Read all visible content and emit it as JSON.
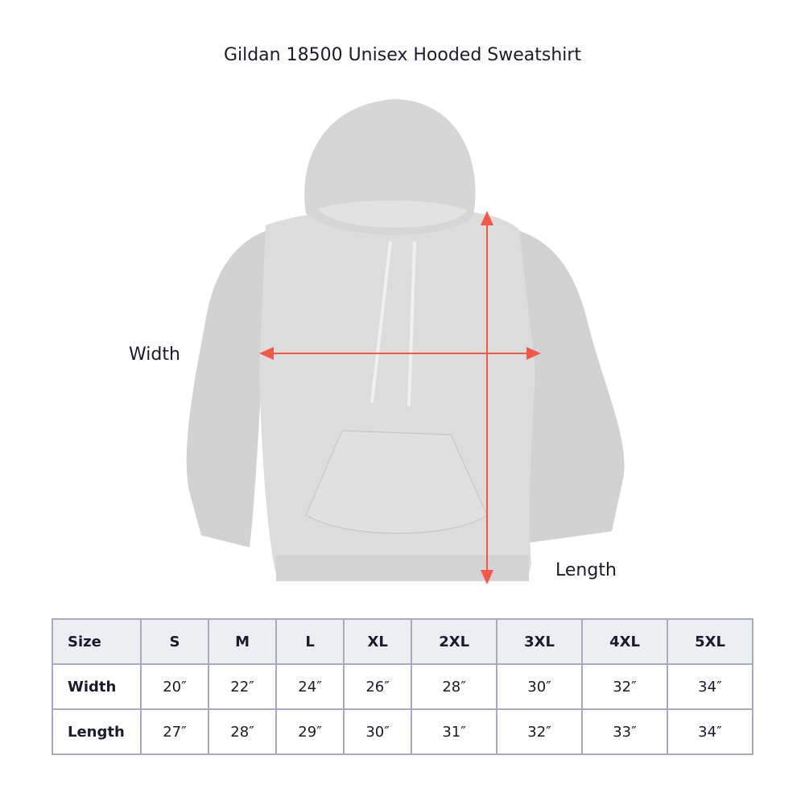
{
  "title": "Gildan 18500 Unisex Hooded Sweatshirt",
  "labels": {
    "width": "Width",
    "length": "Length"
  },
  "colors": {
    "arrow": "#f0584a",
    "garment": "#d9d9da",
    "header_bg": "#eceef1",
    "border": "#a9aabd",
    "text": "#1b1b2f"
  },
  "table": {
    "header": [
      "Size",
      "S",
      "M",
      "L",
      "XL",
      "2XL",
      "3XL",
      "4XL",
      "5XL"
    ],
    "rows": [
      {
        "label": "Width",
        "values": [
          "20″",
          "22″",
          "24″",
          "26″",
          "28″",
          "30″",
          "32″",
          "34″"
        ]
      },
      {
        "label": "Length",
        "values": [
          "27″",
          "28″",
          "29″",
          "30″",
          "31″",
          "32″",
          "33″",
          "34″"
        ]
      }
    ]
  }
}
